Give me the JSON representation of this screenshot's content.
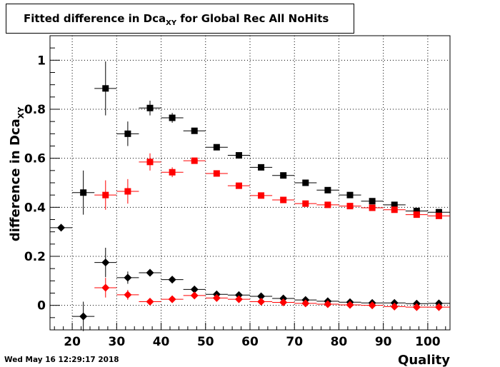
{
  "title": {
    "prefix": "Fitted difference in Dca",
    "subscript": "XY",
    "suffix": " for Global Rec All NoHits"
  },
  "footer": {
    "timestamp": "Wed May 16 12:29:17 2018"
  },
  "chart_data": {
    "type": "scatter",
    "xlabel": "Quality",
    "ylabel": "difference in Dca",
    "ylabel_subscript": "XY",
    "xlim": [
      15,
      105
    ],
    "ylim": [
      -0.1,
      1.1
    ],
    "x_ticks": [
      20,
      30,
      40,
      50,
      60,
      70,
      80,
      90,
      100
    ],
    "y_ticks": [
      0,
      0.2,
      0.4,
      0.6,
      0.8,
      1
    ],
    "y_tick_labels": [
      "0",
      "0.2",
      "0.4",
      "0.6",
      "0.8",
      "1"
    ],
    "grid": true,
    "series": [
      {
        "marker": "square",
        "color": "#000000",
        "points": [
          {
            "x": 22.5,
            "y": 0.46,
            "err": 0.09
          },
          {
            "x": 27.5,
            "y": 0.885,
            "err": 0.11
          },
          {
            "x": 32.5,
            "y": 0.7,
            "err": 0.05
          },
          {
            "x": 37.5,
            "y": 0.805,
            "err": 0.03
          },
          {
            "x": 42.5,
            "y": 0.765,
            "err": 0.02
          },
          {
            "x": 47.5,
            "y": 0.712,
            "err": 0.012
          },
          {
            "x": 52.5,
            "y": 0.645,
            "err": 0.008
          },
          {
            "x": 57.5,
            "y": 0.612,
            "err": 0.006
          },
          {
            "x": 62.5,
            "y": 0.563,
            "err": 0.005
          },
          {
            "x": 67.5,
            "y": 0.53,
            "err": 0.005
          },
          {
            "x": 72.5,
            "y": 0.5,
            "err": 0.004
          },
          {
            "x": 77.5,
            "y": 0.47,
            "err": 0.004
          },
          {
            "x": 82.5,
            "y": 0.45,
            "err": 0.004
          },
          {
            "x": 87.5,
            "y": 0.425,
            "err": 0.004
          },
          {
            "x": 92.5,
            "y": 0.41,
            "err": 0.004
          },
          {
            "x": 97.5,
            "y": 0.385,
            "err": 0.004
          },
          {
            "x": 102.5,
            "y": 0.38,
            "err": 0.004
          }
        ]
      },
      {
        "marker": "square",
        "color": "#ff0000",
        "points": [
          {
            "x": 27.5,
            "y": 0.45,
            "err": 0.06
          },
          {
            "x": 32.5,
            "y": 0.465,
            "err": 0.05
          },
          {
            "x": 37.5,
            "y": 0.585,
            "err": 0.035
          },
          {
            "x": 42.5,
            "y": 0.543,
            "err": 0.02
          },
          {
            "x": 47.5,
            "y": 0.59,
            "err": 0.01
          },
          {
            "x": 52.5,
            "y": 0.538,
            "err": 0.008
          },
          {
            "x": 57.5,
            "y": 0.488,
            "err": 0.006
          },
          {
            "x": 62.5,
            "y": 0.448,
            "err": 0.005
          },
          {
            "x": 67.5,
            "y": 0.43,
            "err": 0.005
          },
          {
            "x": 72.5,
            "y": 0.415,
            "err": 0.004
          },
          {
            "x": 77.5,
            "y": 0.41,
            "err": 0.004
          },
          {
            "x": 82.5,
            "y": 0.405,
            "err": 0.004
          },
          {
            "x": 87.5,
            "y": 0.398,
            "err": 0.004
          },
          {
            "x": 92.5,
            "y": 0.39,
            "err": 0.004
          },
          {
            "x": 97.5,
            "y": 0.37,
            "err": 0.004
          },
          {
            "x": 102.5,
            "y": 0.365,
            "err": 0.004
          }
        ]
      },
      {
        "marker": "diamond",
        "color": "#000000",
        "points": [
          {
            "x": 17.5,
            "y": 0.317,
            "err": 0.0
          },
          {
            "x": 22.5,
            "y": -0.045,
            "err": 0.06
          },
          {
            "x": 27.5,
            "y": 0.175,
            "err": 0.06
          },
          {
            "x": 32.5,
            "y": 0.113,
            "err": 0.025
          },
          {
            "x": 37.5,
            "y": 0.133,
            "err": 0.015
          },
          {
            "x": 42.5,
            "y": 0.105,
            "err": 0.01
          },
          {
            "x": 47.5,
            "y": 0.065,
            "err": 0.008
          },
          {
            "x": 52.5,
            "y": 0.045,
            "err": 0.006
          },
          {
            "x": 57.5,
            "y": 0.042,
            "err": 0.005
          },
          {
            "x": 62.5,
            "y": 0.037,
            "err": 0.004
          },
          {
            "x": 67.5,
            "y": 0.028,
            "err": 0.004
          },
          {
            "x": 72.5,
            "y": 0.022,
            "err": 0.004
          },
          {
            "x": 77.5,
            "y": 0.017,
            "err": 0.004
          },
          {
            "x": 82.5,
            "y": 0.013,
            "err": 0.004
          },
          {
            "x": 87.5,
            "y": 0.01,
            "err": 0.004
          },
          {
            "x": 92.5,
            "y": 0.01,
            "err": 0.004
          },
          {
            "x": 97.5,
            "y": 0.007,
            "err": 0.004
          },
          {
            "x": 102.5,
            "y": 0.008,
            "err": 0.004
          }
        ]
      },
      {
        "marker": "diamond",
        "color": "#ff0000",
        "points": [
          {
            "x": 27.5,
            "y": 0.072,
            "err": 0.04
          },
          {
            "x": 32.5,
            "y": 0.043,
            "err": 0.02
          },
          {
            "x": 37.5,
            "y": 0.015,
            "err": 0.01
          },
          {
            "x": 42.5,
            "y": 0.025,
            "err": 0.008
          },
          {
            "x": 47.5,
            "y": 0.04,
            "err": 0.006
          },
          {
            "x": 52.5,
            "y": 0.03,
            "err": 0.005
          },
          {
            "x": 57.5,
            "y": 0.025,
            "err": 0.004
          },
          {
            "x": 62.5,
            "y": 0.015,
            "err": 0.004
          },
          {
            "x": 67.5,
            "y": 0.012,
            "err": 0.004
          },
          {
            "x": 72.5,
            "y": 0.008,
            "err": 0.004
          },
          {
            "x": 77.5,
            "y": 0.005,
            "err": 0.004
          },
          {
            "x": 82.5,
            "y": 0.002,
            "err": 0.004
          },
          {
            "x": 87.5,
            "y": 0.0,
            "err": 0.004
          },
          {
            "x": 92.5,
            "y": -0.005,
            "err": 0.004
          },
          {
            "x": 97.5,
            "y": -0.007,
            "err": 0.004
          },
          {
            "x": 102.5,
            "y": -0.007,
            "err": 0.004
          }
        ]
      }
    ]
  }
}
